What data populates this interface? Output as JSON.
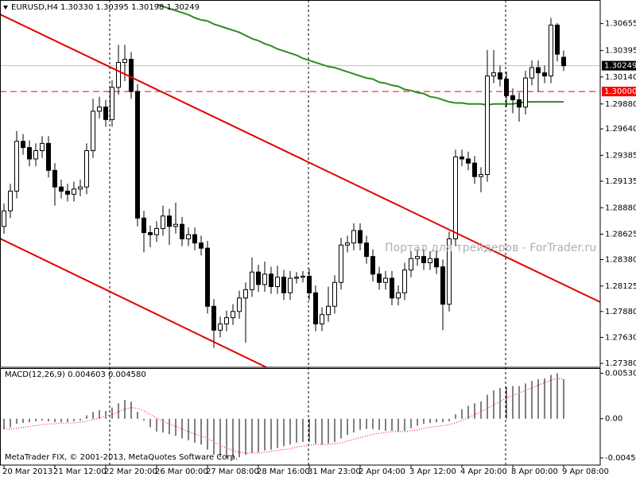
{
  "chart_data": [
    {
      "type": "candlestick",
      "title": "EURUSD,H4",
      "quote": "1.30330 1.30395 1.30198 1.30249",
      "watermark": "Портал для трейдеров - ForTrader.ru",
      "footer": "MetaTrader FIX, © 2001-2013, MetaQuotes Software Corp.",
      "categories": [
        "20 Mar 2013",
        null,
        null,
        null,
        null,
        null,
        null,
        null,
        "21 Mar 12:00",
        null,
        null,
        null,
        null,
        null,
        null,
        null,
        "22 Mar 20:00",
        null,
        null,
        null,
        null,
        null,
        null,
        null,
        "26 Mar 00:00",
        null,
        null,
        null,
        null,
        null,
        null,
        null,
        "27 Mar 08:00",
        null,
        null,
        null,
        null,
        null,
        null,
        null,
        "28 Mar 16:00",
        null,
        null,
        null,
        null,
        null,
        null,
        null,
        "31 Mar 23:00",
        null,
        null,
        null,
        null,
        null,
        null,
        null,
        "2 Apr 04:00",
        null,
        null,
        null,
        null,
        null,
        null,
        null,
        "3 Apr 12:00",
        null,
        null,
        null,
        null,
        null,
        null,
        null,
        "4 Apr 20:00",
        null,
        null,
        null,
        null,
        null,
        null,
        null,
        "8 Apr 00:00",
        null,
        null,
        null,
        null,
        null,
        null,
        null,
        "9 Apr 08:00"
      ],
      "open": [
        1.287,
        1.2885,
        1.2904,
        1.2952,
        1.2946,
        1.2935,
        1.2943,
        1.295,
        1.2924,
        1.2908,
        1.2904,
        1.2901,
        1.2906,
        1.2908,
        1.2943,
        1.2981,
        1.2985,
        1.2973,
        1.3004,
        1.3028,
        1.3031,
        1.3,
        1.2878,
        1.2864,
        1.2862,
        1.2868,
        1.288,
        1.287,
        1.2872,
        1.2858,
        1.2862,
        1.2854,
        1.2849,
        1.2793,
        1.277,
        1.2776,
        1.2782,
        1.2788,
        1.2801,
        1.2809,
        1.2826,
        1.2814,
        1.2824,
        1.2812,
        1.2821,
        1.2806,
        1.282,
        1.2821,
        1.2822,
        1.2806,
        1.2776,
        1.2785,
        1.2793,
        1.2816,
        1.2852,
        1.2854,
        1.2866,
        1.2854,
        1.2841,
        1.2824,
        1.2816,
        1.282,
        1.2801,
        1.2806,
        1.2828,
        1.2839,
        1.2841,
        1.2835,
        1.2839,
        1.2831,
        1.2795,
        1.2858,
        1.2937,
        1.2935,
        1.2931,
        1.2918,
        1.292,
        1.3015,
        1.3018,
        1.3012,
        1.2996,
        1.2992,
        1.2985,
        1.3013,
        1.3023,
        1.3018,
        1.3015,
        1.3064,
        1.3033
      ],
      "high": [
        1.2892,
        1.2911,
        1.2962,
        1.2959,
        1.2953,
        1.295,
        1.2957,
        1.2957,
        1.2931,
        1.2915,
        1.2911,
        1.2913,
        1.2915,
        1.295,
        1.2993,
        1.2995,
        1.2992,
        1.3011,
        1.3045,
        1.3045,
        1.3038,
        1.3007,
        1.2885,
        1.2871,
        1.2875,
        1.289,
        1.2887,
        1.2893,
        1.2879,
        1.2869,
        1.2869,
        1.2861,
        1.2856,
        1.28,
        1.2783,
        1.2789,
        1.2795,
        1.2808,
        1.2816,
        1.284,
        1.2833,
        1.2836,
        1.2831,
        1.2832,
        1.2828,
        1.2827,
        1.2826,
        1.2827,
        1.2829,
        1.2813,
        1.2792,
        1.2812,
        1.2823,
        1.2859,
        1.2861,
        1.2873,
        1.2873,
        1.2861,
        1.2848,
        1.2831,
        1.2827,
        1.2827,
        1.2813,
        1.2835,
        1.2846,
        1.2848,
        1.2848,
        1.2846,
        1.2846,
        1.2838,
        1.2865,
        1.2944,
        1.2944,
        1.2942,
        1.2938,
        1.2927,
        1.304,
        1.304,
        1.3025,
        1.3019,
        1.3003,
        1.2999,
        1.302,
        1.303,
        1.303,
        1.3025,
        1.3071,
        1.3066,
        1.30395
      ],
      "low": [
        1.2863,
        1.2878,
        1.2897,
        1.2939,
        1.2928,
        1.2928,
        1.2936,
        1.2917,
        1.289,
        1.2897,
        1.2894,
        1.2894,
        1.2899,
        1.2901,
        1.2936,
        1.2974,
        1.2966,
        1.2966,
        1.2997,
        1.301,
        1.2993,
        1.287,
        1.2845,
        1.285,
        1.2855,
        1.2861,
        1.2852,
        1.2863,
        1.2851,
        1.2851,
        1.2847,
        1.2842,
        1.2786,
        1.2753,
        1.2763,
        1.2769,
        1.2775,
        1.2781,
        1.2758,
        1.2802,
        1.2807,
        1.2807,
        1.2805,
        1.2805,
        1.2799,
        1.2799,
        1.2815,
        1.2816,
        1.2799,
        1.2769,
        1.2769,
        1.2778,
        1.2786,
        1.2809,
        1.2845,
        1.2847,
        1.2847,
        1.2834,
        1.2817,
        1.2809,
        1.2809,
        1.2794,
        1.2794,
        1.2799,
        1.2821,
        1.2832,
        1.2828,
        1.2828,
        1.2824,
        1.277,
        1.2788,
        1.2851,
        1.2928,
        1.2924,
        1.2911,
        1.2903,
        1.2913,
        1.3008,
        1.3005,
        1.2985,
        1.2979,
        1.2971,
        1.2978,
        1.3006,
        1.3,
        1.3008,
        1.3008,
        1.3029,
        1.30198
      ],
      "close": [
        1.2885,
        1.2904,
        1.2952,
        1.2946,
        1.2935,
        1.2943,
        1.295,
        1.2924,
        1.2908,
        1.2904,
        1.2901,
        1.2906,
        1.2908,
        1.2943,
        1.2981,
        1.2985,
        1.2973,
        1.3004,
        1.3028,
        1.3031,
        1.3,
        1.2878,
        1.2864,
        1.2862,
        1.2868,
        1.288,
        1.287,
        1.2872,
        1.2858,
        1.2862,
        1.2854,
        1.2849,
        1.2793,
        1.277,
        1.2776,
        1.2782,
        1.2788,
        1.2801,
        1.2809,
        1.2826,
        1.2814,
        1.2824,
        1.2812,
        1.2821,
        1.2806,
        1.282,
        1.2821,
        1.2822,
        1.2806,
        1.2776,
        1.2785,
        1.2793,
        1.2816,
        1.2852,
        1.2854,
        1.2866,
        1.2854,
        1.2841,
        1.2824,
        1.2816,
        1.282,
        1.2801,
        1.2806,
        1.2828,
        1.2839,
        1.2841,
        1.2835,
        1.2839,
        1.2831,
        1.2795,
        1.2858,
        1.2937,
        1.2935,
        1.2931,
        1.2918,
        1.292,
        1.3015,
        1.3018,
        1.3012,
        1.2996,
        1.2992,
        1.2985,
        1.3013,
        1.3023,
        1.3018,
        1.3015,
        1.3064,
        1.3036,
        1.30249
      ],
      "up_color": "#ffffff",
      "down_color": "#000000",
      "ma": {
        "color": "#2e8b22",
        "values": [
          null,
          null,
          null,
          null,
          null,
          null,
          null,
          null,
          null,
          null,
          null,
          null,
          null,
          null,
          null,
          null,
          null,
          null,
          null,
          null,
          null,
          null,
          null,
          null,
          1.3084,
          1.3082,
          1.308,
          1.3078,
          1.3076,
          1.3074,
          1.3071,
          1.3069,
          1.3068,
          1.3065,
          1.3063,
          1.3061,
          1.3059,
          1.3057,
          1.3054,
          1.3051,
          1.3049,
          1.3046,
          1.3044,
          1.3041,
          1.3039,
          1.3037,
          1.3035,
          1.3032,
          1.303,
          1.3028,
          1.3026,
          1.3024,
          1.3023,
          1.3021,
          1.3019,
          1.3017,
          1.3015,
          1.3013,
          1.3012,
          1.3009,
          1.3008,
          1.3006,
          1.3005,
          1.3002,
          1.3001,
          1.2999,
          1.2998,
          1.2995,
          1.2994,
          1.2992,
          1.299,
          1.2989,
          1.2989,
          1.2988,
          1.2988,
          1.2988,
          1.2987,
          1.2988,
          1.2988,
          1.2988,
          1.2988,
          1.2989,
          1.299,
          1.299,
          1.299,
          1.299,
          1.299,
          1.299,
          1.299
        ]
      },
      "levels": [
        {
          "value": 1.3,
          "label": "1.30000",
          "color": "#ff0000",
          "dashed": true
        },
        {
          "value": 1.30249,
          "color": "#c0c0c0",
          "dashed": false
        }
      ],
      "ylim": [
        1.27342,
        1.30882
      ],
      "yticks": [
        1.30655,
        1.30395,
        {
          "value": 1.3014,
          "label": "1.30140"
        },
        {
          "value": 1.2988,
          "label": "1.29880"
        },
        {
          "value": 1.2964,
          "label": "1.29640"
        },
        1.29385,
        1.29135,
        {
          "value": 1.2888,
          "label": "1.28880"
        },
        1.28625,
        {
          "value": 1.2838,
          "label": "1.28380"
        },
        1.28125,
        {
          "value": 1.2788,
          "label": "1.27880"
        },
        {
          "value": 1.2763,
          "label": "1.27630"
        },
        {
          "value": 1.2738,
          "label": "1.27380"
        }
      ],
      "grid": false
    },
    {
      "type": "macd",
      "title": "MACD(12,26,9) 0.004603 0.004580",
      "series": [
        {
          "kind": "bar",
          "color": "#000000",
          "values": [
            -0.0012,
            -0.001,
            -0.0006,
            -0.0005,
            -0.0004,
            -0.0003,
            -0.0002,
            -0.0003,
            -0.0004,
            -0.0004,
            -0.0004,
            -0.0003,
            -0.0002,
            0.0004,
            0.0008,
            0.001,
            0.0009,
            0.0013,
            0.0018,
            0.0022,
            0.002,
            0.0008,
            -0.0002,
            -0.001,
            -0.0015,
            -0.0016,
            -0.0018,
            -0.002,
            -0.0023,
            -0.0025,
            -0.0028,
            -0.003,
            -0.0036,
            -0.0042,
            -0.0045,
            -0.0046,
            -0.0046,
            -0.0045,
            -0.0042,
            -0.004,
            -0.0039,
            -0.0037,
            -0.0036,
            -0.0034,
            -0.0032,
            -0.003,
            -0.0028,
            -0.0027,
            -0.0027,
            -0.0029,
            -0.003,
            -0.0029,
            -0.0027,
            -0.0023,
            -0.0019,
            -0.0016,
            -0.0013,
            -0.0012,
            -0.0012,
            -0.0013,
            -0.0014,
            -0.0014,
            -0.0015,
            -0.0014,
            -0.0011,
            -0.0008,
            -0.0006,
            -0.0005,
            -0.0004,
            -0.0004,
            -0.0003,
            0.0005,
            0.0011,
            0.0015,
            0.0018,
            0.002,
            0.0028,
            0.0033,
            0.0036,
            0.0037,
            0.0038,
            0.0038,
            0.0041,
            0.0044,
            0.0046,
            0.0047,
            0.0051,
            0.0053,
            0.004603
          ]
        },
        {
          "kind": "line",
          "color": "#ff0000",
          "values": [
            -0.0012,
            -0.0012,
            -0.0011,
            -0.001,
            -0.0009,
            -0.0008,
            -0.0007,
            -0.0006,
            -0.0006,
            -0.0005,
            -0.0005,
            -0.0005,
            -0.0004,
            -0.0003,
            -0.0001,
            0.0001,
            0.0003,
            0.0005,
            0.0008,
            0.0011,
            0.0013,
            0.0012,
            0.0009,
            0.0005,
            0.0001,
            -0.0003,
            -0.0006,
            -0.0009,
            -0.0012,
            -0.0015,
            -0.0018,
            -0.002,
            -0.0023,
            -0.0027,
            -0.0031,
            -0.0034,
            -0.0037,
            -0.0039,
            -0.004,
            -0.004,
            -0.004,
            -0.0039,
            -0.0038,
            -0.0037,
            -0.0036,
            -0.0035,
            -0.0033,
            -0.0032,
            -0.0031,
            -0.003,
            -0.003,
            -0.003,
            -0.0029,
            -0.0028,
            -0.0026,
            -0.0024,
            -0.0022,
            -0.002,
            -0.0018,
            -0.0017,
            -0.0016,
            -0.0015,
            -0.0015,
            -0.0015,
            -0.0014,
            -0.0013,
            -0.0011,
            -0.001,
            -0.0009,
            -0.0008,
            -0.0007,
            -0.0005,
            -0.0002,
            0.0001,
            0.0005,
            0.0008,
            0.0012,
            0.0016,
            0.002,
            0.0024,
            0.0027,
            0.003,
            0.0033,
            0.0036,
            0.0039,
            0.0042,
            0.0045,
            0.0047,
            0.00458
          ]
        }
      ],
      "ylim": [
        -0.0054,
        0.0059
      ],
      "yticks": [
        0.005301,
        {
          "value": 0,
          "label": "0.00"
        },
        -0.004564
      ]
    }
  ]
}
